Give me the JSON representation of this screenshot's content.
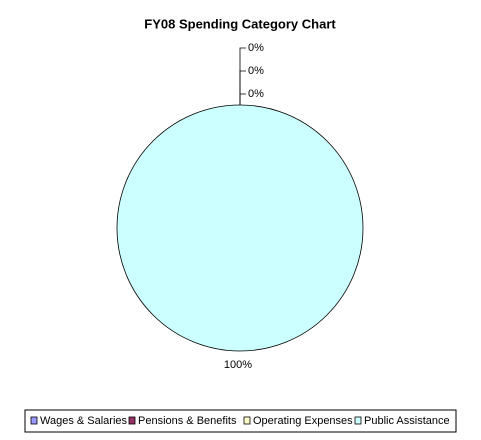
{
  "chart_data": {
    "type": "pie",
    "title": "FY08 Spending Category Chart",
    "categories": [
      "Wages & Salaries",
      "Pensions & Benefits",
      "Operating Expenses",
      "Public Assistance"
    ],
    "values": [
      0,
      0,
      0,
      100
    ],
    "value_labels": [
      "0%",
      "0%",
      "0%",
      "100%"
    ],
    "colors": [
      "#9999ff",
      "#993366",
      "#ffffcc",
      "#ccffff"
    ]
  }
}
